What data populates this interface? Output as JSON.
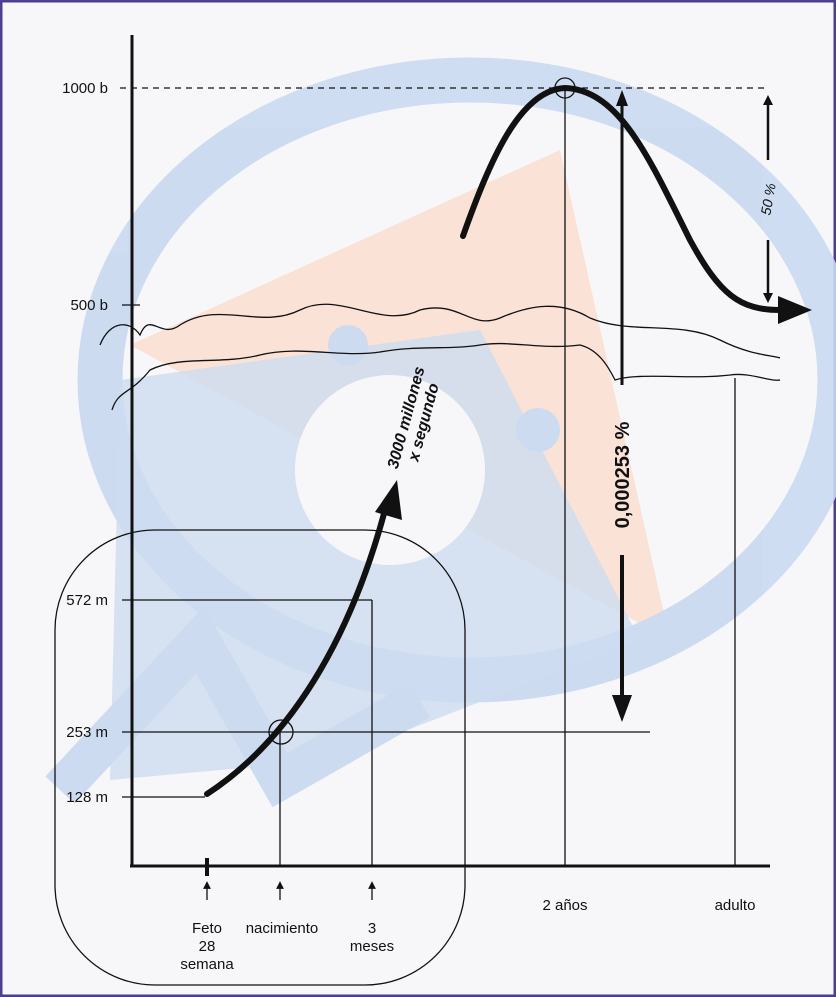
{
  "y_axis": {
    "labels": [
      "1000 b",
      "500 b",
      "572 m",
      "253 m",
      "128 m"
    ]
  },
  "x_axis": {
    "feto": [
      "Feto",
      "28",
      "semana"
    ],
    "nacimiento": "nacimiento",
    "tres_meses": [
      "3",
      "meses"
    ],
    "dos_anos": "2 años",
    "adulto": "adulto"
  },
  "annotations": {
    "rate": [
      "3000 millones",
      "x segundo"
    ],
    "percent_small": "0,000253 %",
    "percent_half": "50 %"
  }
}
